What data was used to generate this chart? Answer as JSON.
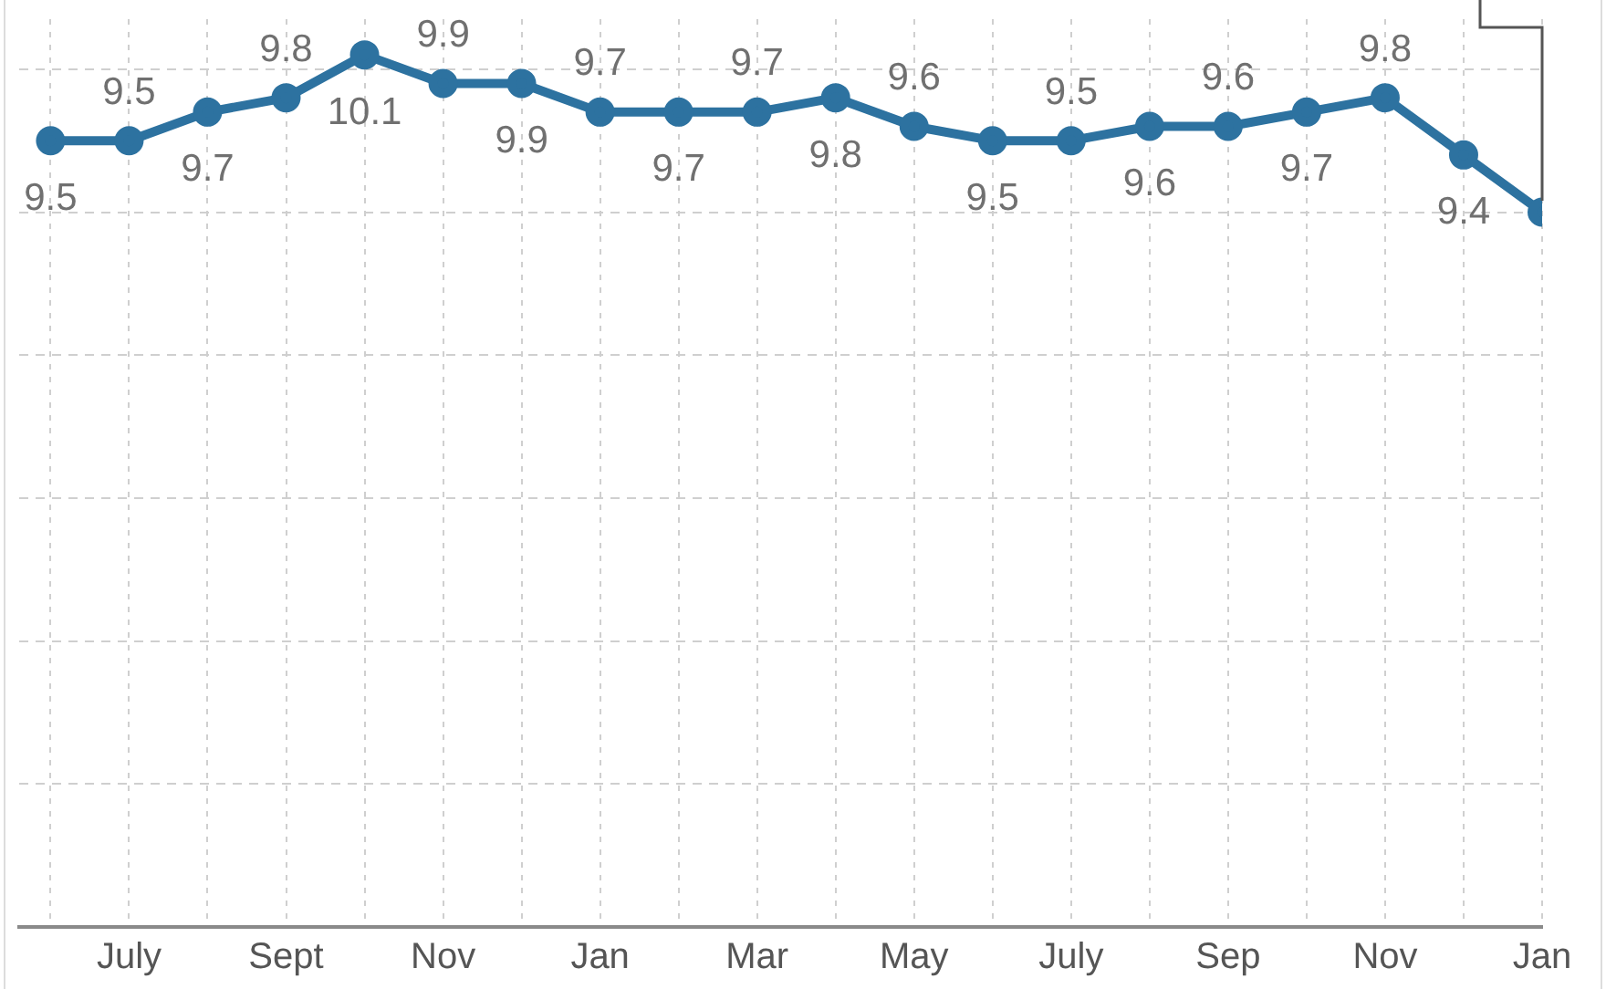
{
  "chart_data": {
    "type": "line",
    "categories": [
      null,
      "July",
      null,
      "Sept",
      null,
      "Nov",
      null,
      "Jan",
      null,
      "Mar",
      null,
      "May",
      null,
      "July",
      null,
      "Sep",
      null,
      "Nov",
      null,
      "Jan"
    ],
    "values": [
      9.5,
      9.5,
      9.7,
      9.8,
      10.1,
      9.9,
      9.9,
      9.7,
      9.7,
      9.7,
      9.8,
      9.6,
      9.5,
      9.5,
      9.6,
      9.6,
      9.7,
      9.8,
      9.4,
      9.0
    ],
    "value_labels": [
      "9.5",
      "9.5",
      "9.7",
      "9.8",
      "10.1",
      "9.9",
      "9.9",
      "9.7",
      "9.7",
      "9.7",
      "9.8",
      "9.6",
      "9.5",
      "9.5",
      "9.6",
      "9.6",
      "9.7",
      "9.8",
      "9.4",
      null
    ],
    "color": "#2d72a0",
    "ylim": [
      4,
      10.35
    ],
    "yticks": [
      {
        "value": 4,
        "label": null
      },
      {
        "value": 5,
        "label": null
      },
      {
        "value": 6,
        "label": null
      },
      {
        "value": 7,
        "label": null
      },
      {
        "value": 8,
        "label": null
      },
      {
        "value": 9,
        "label": null
      },
      {
        "value": 10,
        "label": null
      }
    ],
    "tick_labels": "x",
    "grid": true,
    "marker": "circle",
    "line_style": "solid"
  }
}
